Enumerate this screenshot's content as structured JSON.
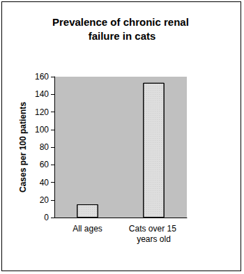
{
  "chart_data": {
    "type": "bar",
    "title": "Prevalence of chronic renal failure in cats",
    "y_label": "Cases per 100 patients",
    "categories": [
      "All ages",
      "Cats over 15 years old"
    ],
    "values": [
      15,
      153
    ],
    "color": "#dedede",
    "ylim": [
      0,
      160
    ],
    "yticks": [
      0,
      20,
      40,
      60,
      80,
      100,
      120,
      140,
      160
    ],
    "grid": false
  }
}
